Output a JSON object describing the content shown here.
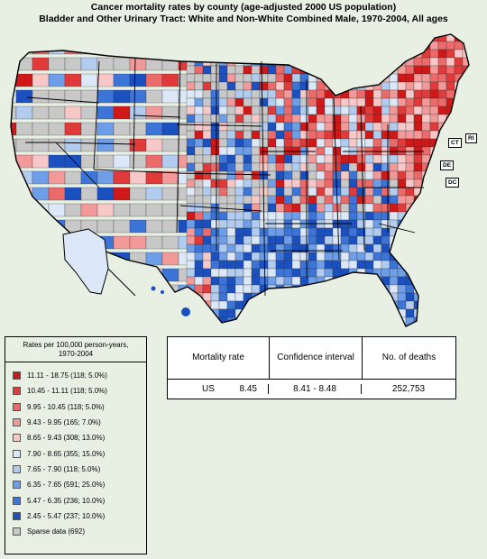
{
  "title": {
    "line1": "Cancer mortality rates by county (age-adjusted 2000 US population)",
    "line2": "Bladder and Other Urinary Tract:  White and Non-White Combined Male, 1970-2004, All ages"
  },
  "state_labels": [
    "RI",
    "CT",
    "DE",
    "DC"
  ],
  "legend": {
    "title_line1": "Rates per 100,000 person-years,",
    "title_line2": "1970-2004",
    "items": [
      {
        "label": "11.11 - 18.75 (118; 5.0%)",
        "color": "#d01818"
      },
      {
        "label": "10.45 - 11.11 (118; 5.0%)",
        "color": "#e03a3a"
      },
      {
        "label": "9.95 - 10.45 (118; 5.0%)",
        "color": "#ec6a6a"
      },
      {
        "label": "9.43 - 9.95 (165; 7.0%)",
        "color": "#f29a9a"
      },
      {
        "label": "8.65 - 9.43 (308; 13.0%)",
        "color": "#f8c8c8"
      },
      {
        "label": "7.90 - 8.65 (355; 15.0%)",
        "color": "#dce8f8"
      },
      {
        "label": "7.65 - 7.90 (118; 5.0%)",
        "color": "#b2ccf0"
      },
      {
        "label": "6.35 - 7.65 (591; 25.0%)",
        "color": "#6e9ee8"
      },
      {
        "label": "5.47 - 6.35 (236; 10.0%)",
        "color": "#3c74d8"
      },
      {
        "label": "2.45 - 5.47 (237; 10.0%)",
        "color": "#1a50c0"
      },
      {
        "label": "Sparse data (692)",
        "color": "#c8c8c8"
      }
    ]
  },
  "stats": {
    "header_rate": "Mortality rate",
    "header_ci": "Confidence interval",
    "header_deaths": "No. of deaths",
    "region": "US",
    "rate": "8.45",
    "ci": "8.41 - 8.48",
    "deaths": "252,753"
  }
}
